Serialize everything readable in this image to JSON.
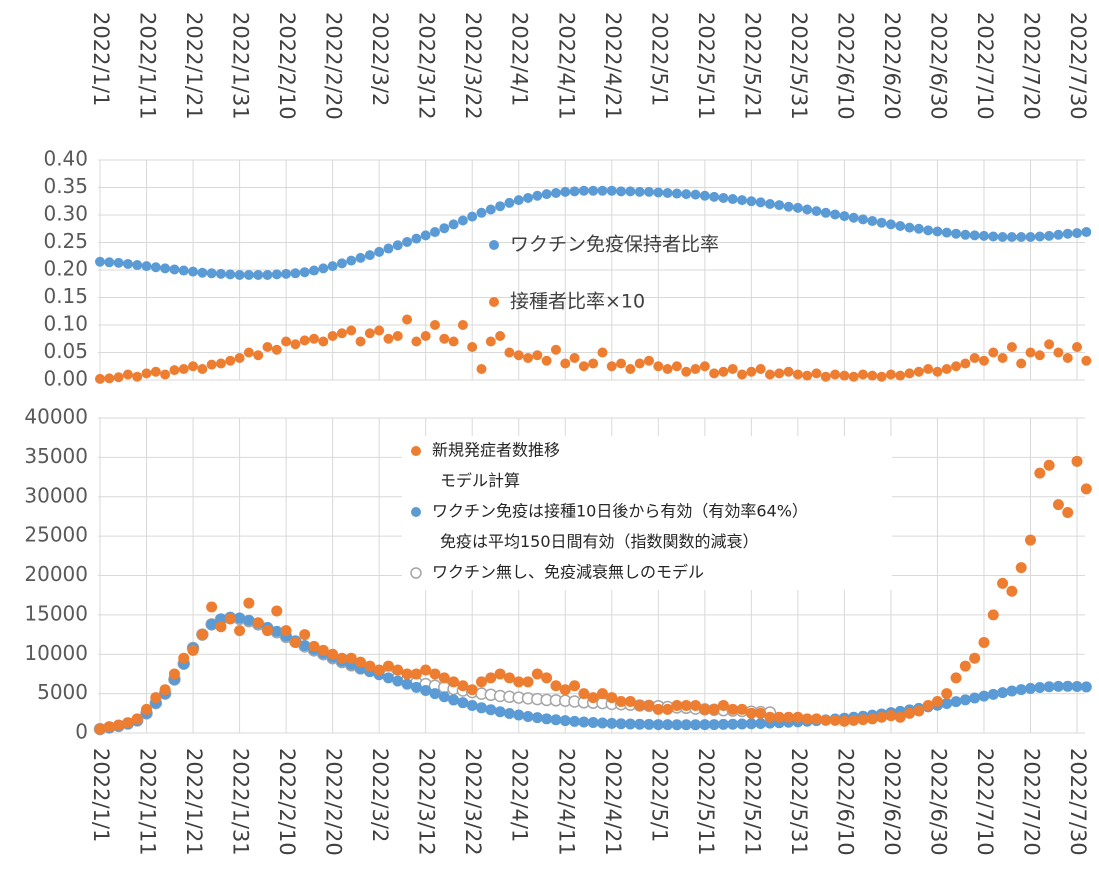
{
  "chart_data": [
    {
      "type": "scatter",
      "categories": [
        "2022/1/1",
        null,
        null,
        null,
        null,
        "2022/1/11",
        null,
        null,
        null,
        null,
        "2022/1/21",
        null,
        null,
        null,
        null,
        "2022/1/31",
        null,
        null,
        null,
        null,
        "2022/2/10",
        null,
        null,
        null,
        null,
        "2022/2/20",
        null,
        null,
        null,
        null,
        "2022/3/2",
        null,
        null,
        null,
        null,
        "2022/3/12",
        null,
        null,
        null,
        null,
        "2022/3/22",
        null,
        null,
        null,
        null,
        "2022/4/1",
        null,
        null,
        null,
        null,
        "2022/4/11",
        null,
        null,
        null,
        null,
        "2022/4/21",
        null,
        null,
        null,
        null,
        "2022/5/1",
        null,
        null,
        null,
        null,
        "2022/5/11",
        null,
        null,
        null,
        null,
        "2022/5/21",
        null,
        null,
        null,
        null,
        "2022/5/31",
        null,
        null,
        null,
        null,
        "2022/6/10",
        null,
        null,
        null,
        null,
        "2022/6/20",
        null,
        null,
        null,
        null,
        "2022/6/30",
        null,
        null,
        null,
        null,
        "2022/7/10",
        null,
        null,
        null,
        null,
        "2022/7/20",
        null,
        null,
        null,
        null,
        "2022/7/30",
        null
      ],
      "ylim": [
        0,
        0.4
      ],
      "yticks": [
        {
          "value": 0,
          "label": "0.00"
        },
        {
          "value": 0.05,
          "label": "0.05"
        },
        {
          "value": 0.1,
          "label": "0.10"
        },
        {
          "value": 0.15,
          "label": "0.15"
        },
        {
          "value": 0.2,
          "label": "0.20"
        },
        {
          "value": 0.25,
          "label": "0.25"
        },
        {
          "value": 0.3,
          "label": "0.30"
        },
        {
          "value": 0.35,
          "label": "0.35"
        },
        {
          "value": 0.4,
          "label": "0.40"
        }
      ],
      "grid": true,
      "series": [
        {
          "name": "ワクチン免疫保持者比率",
          "color": "#5b9bd5",
          "marker": "filled",
          "values": [
            0.215,
            0.214,
            0.213,
            0.211,
            0.209,
            0.207,
            0.205,
            0.203,
            0.201,
            0.199,
            0.197,
            0.195,
            0.194,
            0.193,
            0.192,
            0.191,
            0.191,
            0.191,
            0.191,
            0.192,
            0.193,
            0.194,
            0.196,
            0.199,
            0.203,
            0.207,
            0.212,
            0.217,
            0.222,
            0.227,
            0.233,
            0.239,
            0.245,
            0.251,
            0.257,
            0.263,
            0.269,
            0.276,
            0.283,
            0.29,
            0.297,
            0.304,
            0.31,
            0.316,
            0.322,
            0.327,
            0.331,
            0.335,
            0.338,
            0.34,
            0.342,
            0.343,
            0.344,
            0.344,
            0.344,
            0.344,
            0.343,
            0.343,
            0.342,
            0.342,
            0.341,
            0.34,
            0.339,
            0.338,
            0.337,
            0.335,
            0.333,
            0.331,
            0.329,
            0.327,
            0.325,
            0.323,
            0.32,
            0.318,
            0.315,
            0.313,
            0.31,
            0.307,
            0.304,
            0.301,
            0.298,
            0.295,
            0.292,
            0.289,
            0.286,
            0.283,
            0.28,
            0.277,
            0.275,
            0.272,
            0.27,
            0.268,
            0.266,
            0.264,
            0.263,
            0.262,
            0.261,
            0.26,
            0.26,
            0.26,
            0.26,
            0.261,
            0.262,
            0.264,
            0.266,
            0.267,
            0.269
          ]
        },
        {
          "name": "接種者比率×10",
          "color": "#ed7d31",
          "marker": "filled",
          "values": [
            0.002,
            0.003,
            0.005,
            0.01,
            0.006,
            0.012,
            0.015,
            0.01,
            0.018,
            0.02,
            0.025,
            0.02,
            0.028,
            0.03,
            0.035,
            0.04,
            0.05,
            0.045,
            0.06,
            0.055,
            0.07,
            0.065,
            0.072,
            0.075,
            0.07,
            0.08,
            0.085,
            0.09,
            0.07,
            0.085,
            0.09,
            0.075,
            0.08,
            0.11,
            0.07,
            0.08,
            0.1,
            0.075,
            0.07,
            0.1,
            0.06,
            0.02,
            0.07,
            0.08,
            0.05,
            0.045,
            0.04,
            0.045,
            0.035,
            0.055,
            0.03,
            0.04,
            0.025,
            0.03,
            0.05,
            0.025,
            0.03,
            0.02,
            0.03,
            0.035,
            0.025,
            0.02,
            0.025,
            0.015,
            0.02,
            0.025,
            0.012,
            0.015,
            0.02,
            0.01,
            0.015,
            0.02,
            0.01,
            0.012,
            0.015,
            0.01,
            0.008,
            0.012,
            0.006,
            0.01,
            0.008,
            0.006,
            0.01,
            0.008,
            0.006,
            0.01,
            0.008,
            0.012,
            0.015,
            0.02,
            0.015,
            0.02,
            0.025,
            0.03,
            0.04,
            0.035,
            0.05,
            0.04,
            0.06,
            0.03,
            0.05,
            0.045,
            0.065,
            0.05,
            0.04,
            0.06,
            0.035
          ]
        }
      ]
    },
    {
      "type": "scatter",
      "categories": [
        "2022/1/1",
        null,
        null,
        null,
        null,
        "2022/1/11",
        null,
        null,
        null,
        null,
        "2022/1/21",
        null,
        null,
        null,
        null,
        "2022/1/31",
        null,
        null,
        null,
        null,
        "2022/2/10",
        null,
        null,
        null,
        null,
        "2022/2/20",
        null,
        null,
        null,
        null,
        "2022/3/2",
        null,
        null,
        null,
        null,
        "2022/3/12",
        null,
        null,
        null,
        null,
        "2022/3/22",
        null,
        null,
        null,
        null,
        "2022/4/1",
        null,
        null,
        null,
        null,
        "2022/4/11",
        null,
        null,
        null,
        null,
        "2022/4/21",
        null,
        null,
        null,
        null,
        "2022/5/1",
        null,
        null,
        null,
        null,
        "2022/5/11",
        null,
        null,
        null,
        null,
        "2022/5/21",
        null,
        null,
        null,
        null,
        "2022/5/31",
        null,
        null,
        null,
        null,
        "2022/6/10",
        null,
        null,
        null,
        null,
        "2022/6/20",
        null,
        null,
        null,
        null,
        "2022/6/30",
        null,
        null,
        null,
        null,
        "2022/7/10",
        null,
        null,
        null,
        null,
        "2022/7/20",
        null,
        null,
        null,
        null,
        "2022/7/30",
        null
      ],
      "ylim": [
        0,
        40000
      ],
      "yticks": [
        0,
        5000,
        10000,
        15000,
        20000,
        25000,
        30000,
        35000,
        40000
      ],
      "grid": true,
      "legend_notes": [
        "モデル計算",
        "免疫は平均150日間有効（指数関数的減衰）"
      ],
      "series": [
        {
          "name": "新規発症者数推移",
          "color": "#ed7d31",
          "marker": "filled",
          "values": [
            500,
            800,
            1000,
            1300,
            1800,
            3000,
            4500,
            5500,
            7500,
            9500,
            10500,
            12500,
            16000,
            13500,
            14500,
            13000,
            16500,
            14000,
            13000,
            15500,
            13000,
            11500,
            12500,
            11000,
            10500,
            10000,
            9500,
            9500,
            9000,
            8500,
            8000,
            8500,
            8000,
            7500,
            7500,
            8000,
            7500,
            7000,
            6500,
            6000,
            5500,
            6500,
            7000,
            7500,
            7000,
            6500,
            6500,
            7500,
            7000,
            6000,
            5500,
            6000,
            5000,
            4500,
            5000,
            4500,
            4000,
            4000,
            3500,
            3500,
            3000,
            3000,
            3500,
            3500,
            3500,
            3000,
            3000,
            3500,
            3000,
            3000,
            2500,
            2500,
            2000,
            2000,
            2000,
            2000,
            1800,
            1800,
            1600,
            1600,
            1500,
            1600,
            1700,
            1800,
            2000,
            2200,
            2000,
            2500,
            2800,
            3500,
            4000,
            5000,
            7000,
            8500,
            9500,
            11500,
            15000,
            19000,
            18000,
            21000,
            24500,
            33000,
            34000,
            29000,
            28000,
            34500,
            31000
          ]
        },
        {
          "name": "ワクチン免疫は接種10日後から有効（有効率64%）",
          "color": "#5b9bd5",
          "marker": "filled",
          "values": [
            500,
            700,
            900,
            1200,
            1600,
            2500,
            3800,
            5000,
            6800,
            8800,
            10800,
            12500,
            13800,
            14500,
            14700,
            14600,
            14300,
            13900,
            13400,
            12900,
            12300,
            11700,
            11100,
            10600,
            10100,
            9600,
            9100,
            8700,
            8200,
            7800,
            7400,
            7000,
            6600,
            6200,
            5800,
            5400,
            5000,
            4600,
            4200,
            3850,
            3500,
            3200,
            2950,
            2700,
            2480,
            2280,
            2100,
            1950,
            1800,
            1680,
            1570,
            1480,
            1400,
            1330,
            1270,
            1220,
            1180,
            1140,
            1110,
            1090,
            1070,
            1060,
            1050,
            1050,
            1050,
            1060,
            1070,
            1090,
            1110,
            1140,
            1170,
            1210,
            1250,
            1300,
            1360,
            1420,
            1500,
            1580,
            1670,
            1770,
            1880,
            2000,
            2130,
            2270,
            2420,
            2580,
            2750,
            2930,
            3120,
            3320,
            3530,
            3750,
            3980,
            4210,
            4450,
            4680,
            4910,
            5130,
            5330,
            5510,
            5660,
            5780,
            5870,
            5920,
            5930,
            5900,
            5850
          ]
        },
        {
          "name": "ワクチン無し、免疫減衰無しのモデル",
          "color": "#a6a6a6",
          "marker": "hollow",
          "values": [
            500,
            700,
            900,
            1200,
            1600,
            2500,
            3800,
            5000,
            6800,
            8800,
            10800,
            12500,
            13800,
            14400,
            14600,
            14500,
            14200,
            13800,
            13300,
            12800,
            12200,
            11600,
            11000,
            10500,
            10000,
            9500,
            9000,
            8600,
            8200,
            7900,
            7600,
            7300,
            7000,
            6700,
            6400,
            6200,
            6000,
            5800,
            5600,
            5400,
            5200,
            5000,
            4850,
            4700,
            4600,
            4500,
            4400,
            4300,
            4200,
            4150,
            4100,
            4000,
            3900,
            3850,
            3800,
            3700,
            3650,
            3600,
            3500,
            3450,
            3400,
            3300,
            3250,
            3200,
            3100,
            3000,
            2950,
            2900,
            2850,
            2800,
            2700,
            2650,
            2600,
            null,
            null,
            null,
            null,
            null,
            null,
            null,
            null,
            null,
            null,
            null,
            null,
            null,
            null,
            null,
            null,
            null,
            null,
            null,
            null,
            null,
            null,
            null,
            null,
            null,
            null,
            null,
            null,
            null,
            null,
            null,
            null,
            null,
            null
          ]
        }
      ]
    }
  ]
}
